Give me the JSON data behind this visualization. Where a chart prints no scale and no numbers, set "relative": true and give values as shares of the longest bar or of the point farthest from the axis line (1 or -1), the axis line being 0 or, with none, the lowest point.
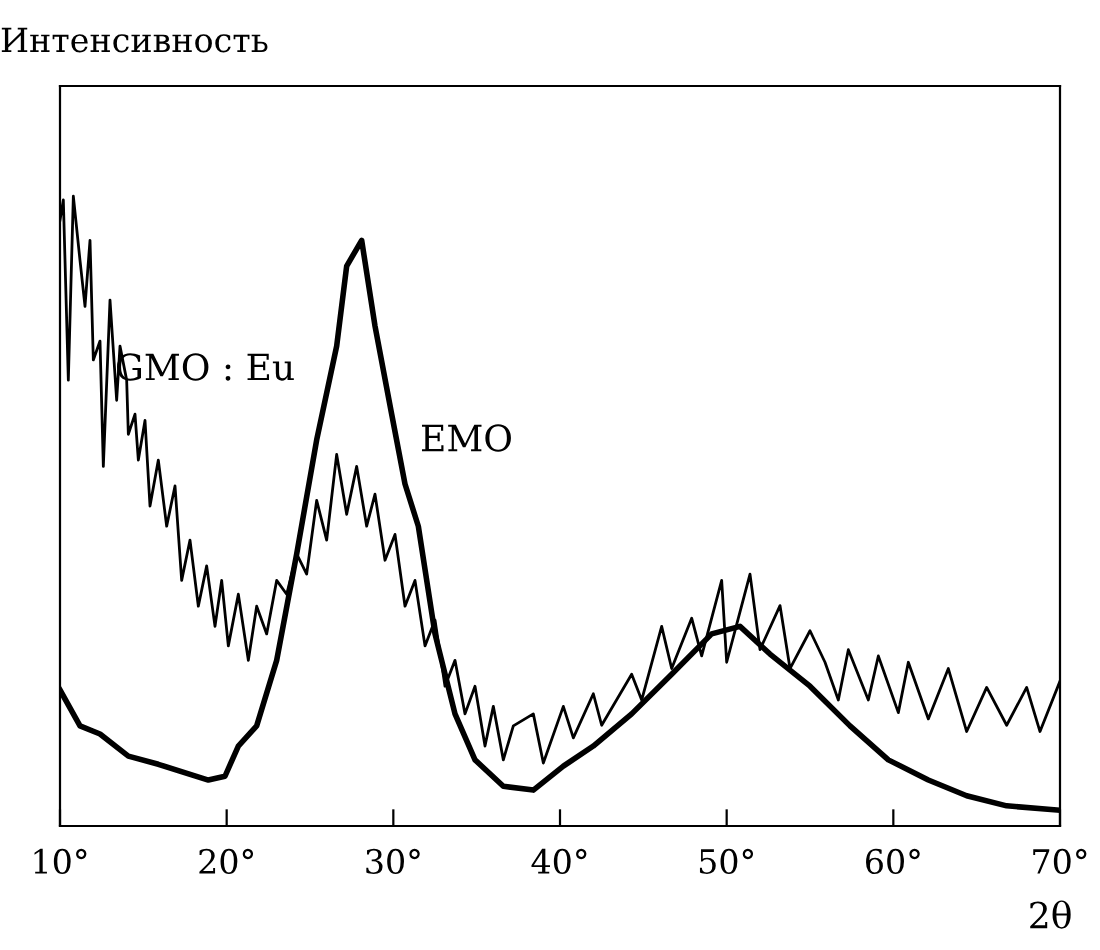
{
  "chart_data": {
    "type": "line",
    "ylabel": "Интенсивность",
    "xlabel": "2θ",
    "relative": true,
    "tick_labels": "x",
    "grid": false,
    "marker": "none",
    "line_style": "solid",
    "xlim": [
      10,
      70
    ],
    "xticks": [
      {
        "value": 10,
        "label": "10°"
      },
      {
        "value": 20,
        "label": "20°"
      },
      {
        "value": 30,
        "label": "30°"
      },
      {
        "value": 40,
        "label": "40°"
      },
      {
        "value": 50,
        "label": "50°"
      },
      {
        "value": 60,
        "label": "60°"
      },
      {
        "value": 70,
        "label": "70°"
      }
    ],
    "series": [
      {
        "name": "GMO : Eu",
        "color": "#000000",
        "x": [
          10.0,
          10.2,
          10.5,
          10.8,
          11.2,
          11.5,
          11.8,
          12.0,
          12.4,
          12.6,
          13.0,
          13.4,
          13.6,
          14.0,
          14.1,
          14.5,
          14.7,
          15.1,
          15.4,
          15.9,
          16.4,
          16.9,
          17.3,
          17.8,
          18.3,
          18.8,
          19.3,
          19.7,
          20.1,
          20.7,
          21.3,
          21.8,
          22.4,
          23.0,
          23.6,
          24.2,
          24.8,
          25.4,
          26.0,
          26.6,
          27.2,
          27.8,
          28.4,
          28.9,
          29.5,
          30.1,
          30.7,
          31.3,
          31.9,
          32.5,
          33.1,
          33.7,
          34.3,
          34.9,
          35.5,
          36.0,
          36.6,
          37.2,
          38.4,
          39.0,
          40.2,
          40.8,
          42.0,
          42.5,
          44.3,
          44.9,
          46.1,
          46.7,
          47.9,
          48.5,
          49.7,
          50.0,
          50.8,
          51.4,
          52.0,
          53.2,
          53.8,
          55.0,
          55.9,
          56.7,
          57.3,
          58.5,
          59.1,
          60.3,
          60.9,
          62.1,
          63.3,
          64.4,
          65.6,
          66.8,
          68.0,
          68.8,
          70.0
        ],
        "values": [
          0.962,
          0.994,
          0.708,
          1.0,
          0.898,
          0.825,
          0.93,
          0.74,
          0.77,
          0.571,
          0.835,
          0.676,
          0.762,
          0.708,
          0.622,
          0.654,
          0.581,
          0.644,
          0.508,
          0.581,
          0.476,
          0.54,
          0.39,
          0.454,
          0.349,
          0.413,
          0.317,
          0.39,
          0.286,
          0.368,
          0.263,
          0.349,
          0.305,
          0.39,
          0.368,
          0.432,
          0.4,
          0.517,
          0.454,
          0.59,
          0.495,
          0.571,
          0.476,
          0.527,
          0.422,
          0.463,
          0.349,
          0.39,
          0.286,
          0.327,
          0.222,
          0.263,
          0.178,
          0.222,
          0.127,
          0.19,
          0.105,
          0.159,
          0.178,
          0.1,
          0.19,
          0.14,
          0.21,
          0.16,
          0.241,
          0.2,
          0.317,
          0.25,
          0.33,
          0.27,
          0.39,
          0.26,
          0.34,
          0.4,
          0.28,
          0.35,
          0.25,
          0.31,
          0.26,
          0.2,
          0.28,
          0.2,
          0.27,
          0.18,
          0.26,
          0.17,
          0.25,
          0.15,
          0.22,
          0.16,
          0.22,
          0.15,
          0.23
        ]
      },
      {
        "name": "EMO",
        "color": "#000000",
        "x": [
          10.0,
          11.2,
          12.4,
          14.1,
          15.9,
          18.9,
          19.9,
          20.7,
          21.8,
          23.0,
          24.2,
          25.4,
          26.6,
          27.2,
          28.1,
          28.9,
          29.9,
          30.7,
          31.5,
          32.5,
          33.7,
          34.9,
          36.6,
          38.4,
          40.2,
          42.0,
          44.3,
          46.7,
          49.1,
          50.8,
          52.6,
          55.0,
          57.4,
          59.7,
          62.1,
          64.4,
          66.8,
          70.0
        ],
        "values": [
          0.216,
          0.159,
          0.146,
          0.111,
          0.098,
          0.073,
          0.079,
          0.127,
          0.159,
          0.263,
          0.432,
          0.613,
          0.762,
          0.889,
          0.93,
          0.794,
          0.654,
          0.543,
          0.476,
          0.305,
          0.178,
          0.105,
          0.063,
          0.057,
          0.095,
          0.127,
          0.178,
          0.241,
          0.305,
          0.317,
          0.273,
          0.222,
          0.159,
          0.105,
          0.073,
          0.048,
          0.032,
          0.025
        ]
      }
    ]
  }
}
